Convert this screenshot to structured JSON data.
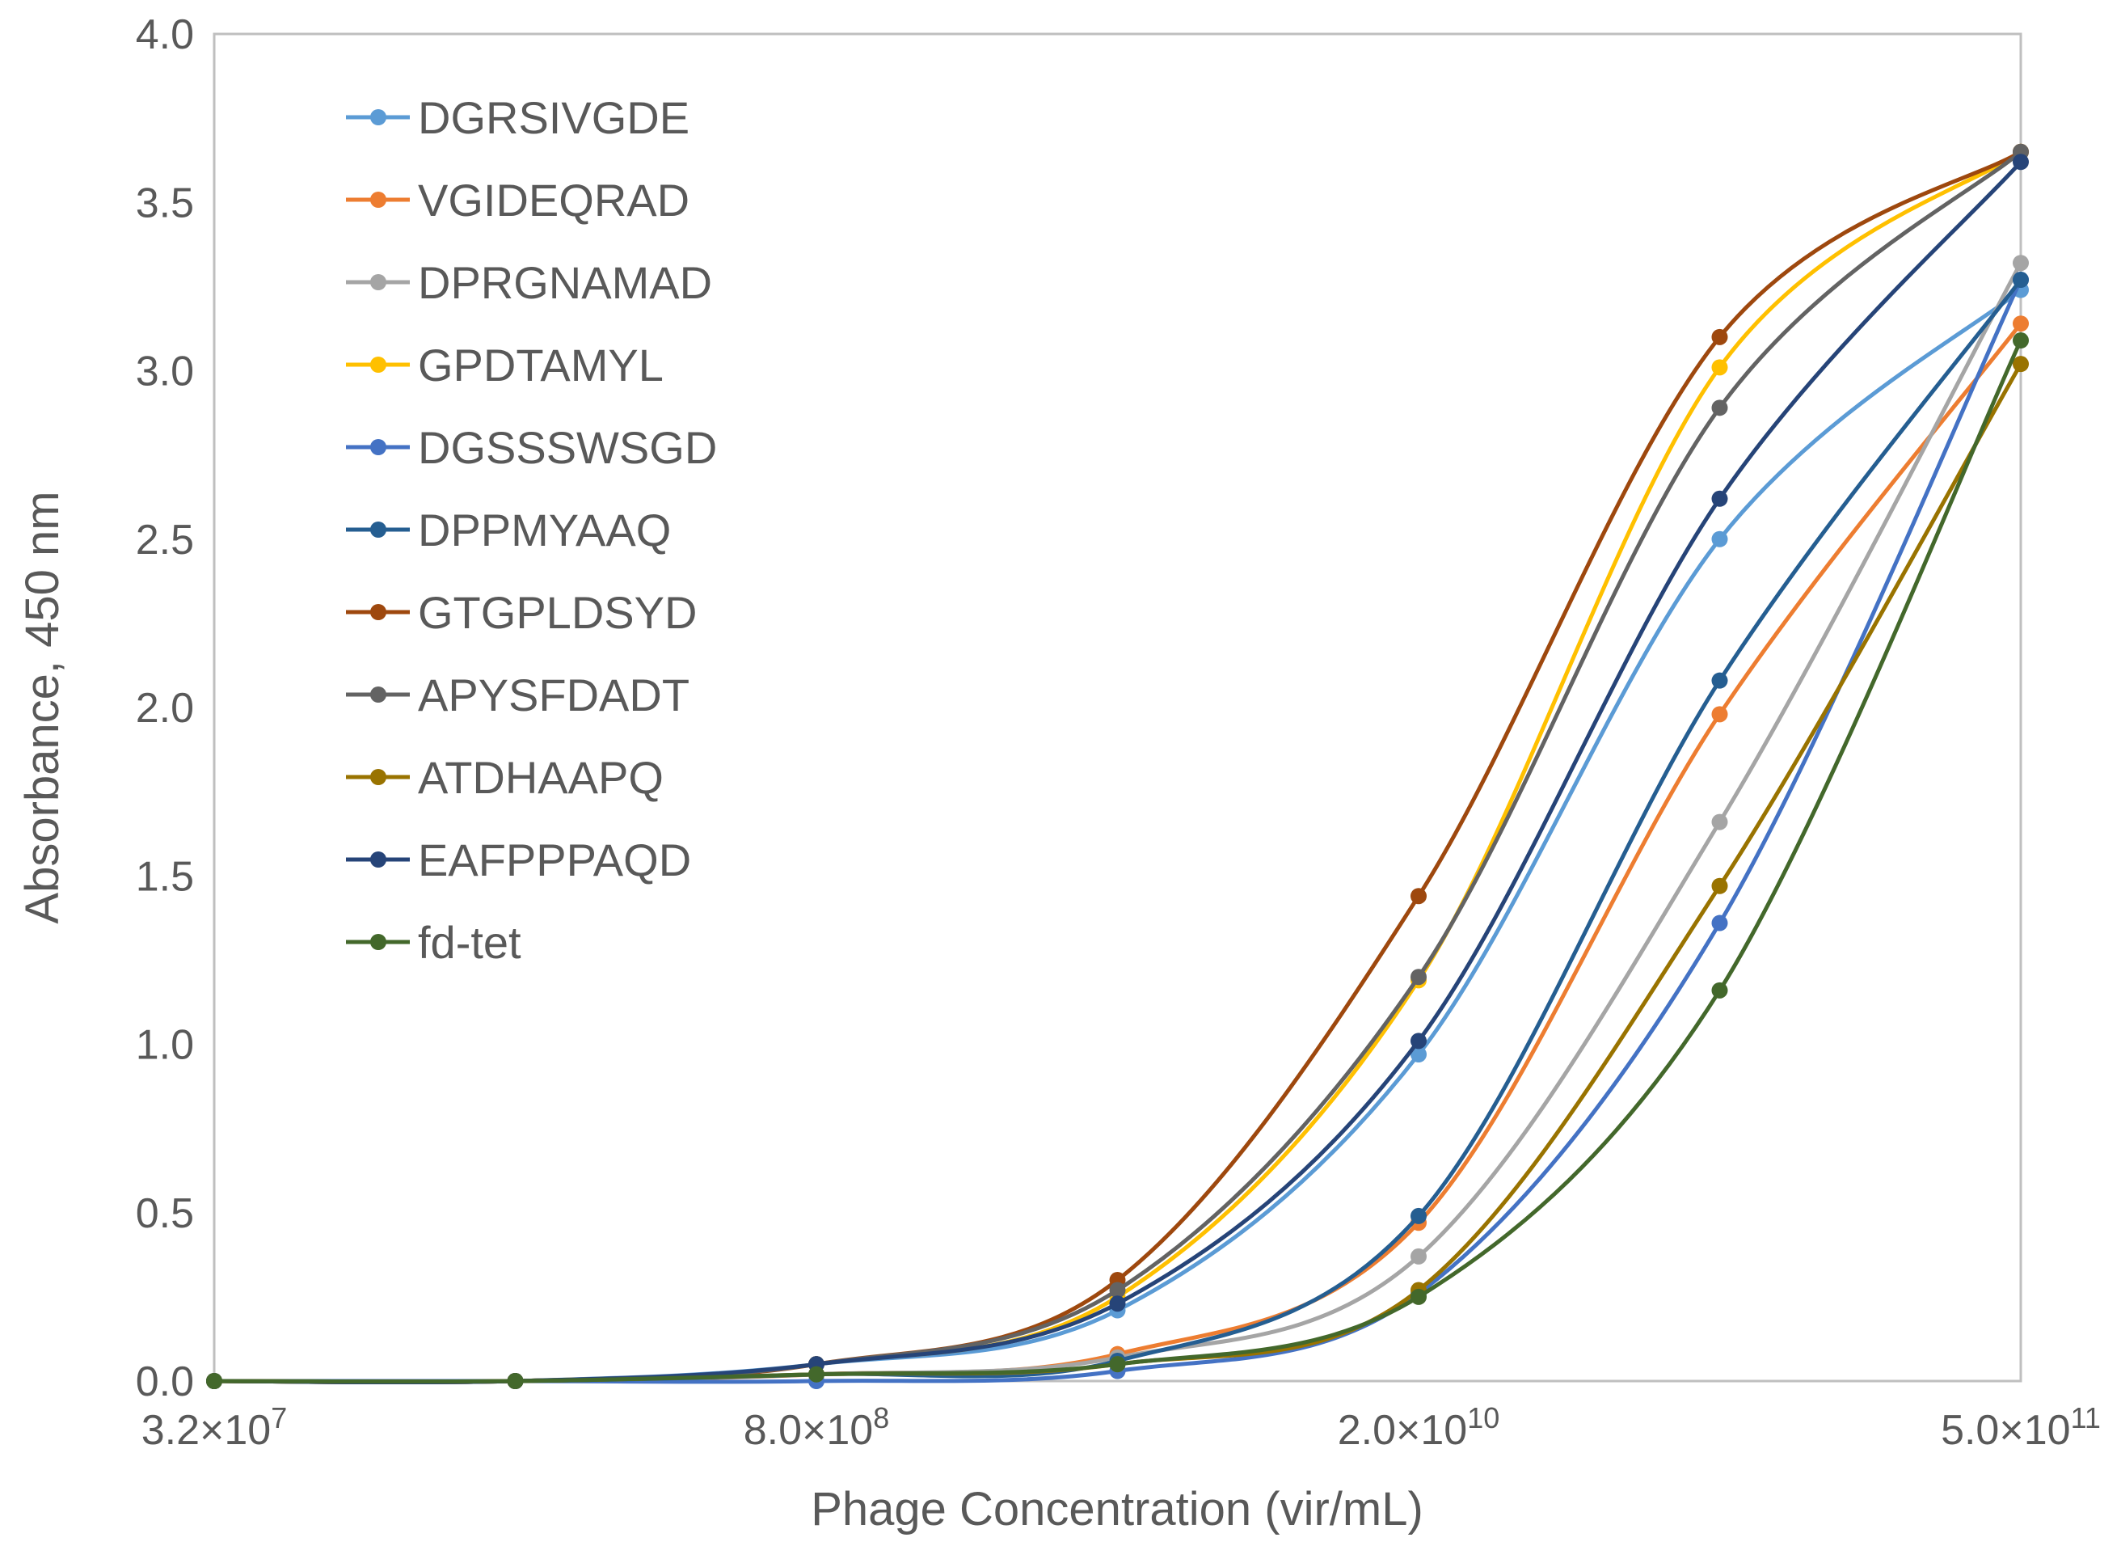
{
  "chart_data": {
    "type": "line",
    "title": "",
    "xlabel": "Phage Concentration (vir/mL)",
    "ylabel": "Absorbance, 450 nm",
    "x_scale": "log",
    "x": [
      32000000.0,
      160000000.0,
      800000000.0,
      4000000000.0,
      20000000000.0,
      100000000000.0,
      500000000000.0
    ],
    "x_tick_labels": [
      {
        "base": "3.2×10",
        "exp": "7"
      },
      {
        "base": "8.0×10",
        "exp": "8"
      },
      {
        "base": "2.0×10",
        "exp": "10"
      },
      {
        "base": "5.0×10",
        "exp": "11"
      }
    ],
    "ylim": [
      0,
      4.0
    ],
    "y_tick_labels": [
      "0.0",
      "0.5",
      "1.0",
      "1.5",
      "2.0",
      "2.5",
      "3.0",
      "3.5",
      "4.0"
    ],
    "legend_position": "top-left",
    "grid": false,
    "series": [
      {
        "name": "DGRSIVGDE",
        "color": "#5B9BD5",
        "values": [
          0.0,
          0.0,
          0.05,
          0.21,
          0.97,
          2.5,
          3.24
        ]
      },
      {
        "name": "VGIDEQRAD",
        "color": "#ED7D31",
        "values": [
          0.0,
          0.0,
          0.02,
          0.08,
          0.47,
          1.98,
          3.14
        ]
      },
      {
        "name": "DPRGNAMAD",
        "color": "#A5A5A5",
        "values": [
          0.0,
          0.0,
          0.02,
          0.07,
          0.37,
          1.66,
          3.32
        ]
      },
      {
        "name": "GPDTAMYL",
        "color": "#FFC000",
        "values": [
          0.0,
          0.0,
          0.05,
          0.25,
          1.19,
          3.01,
          3.65
        ]
      },
      {
        "name": "DGSSSWSGD",
        "color": "#4472C4",
        "values": [
          0.0,
          0.0,
          0.0,
          0.03,
          0.26,
          1.36,
          3.27
        ]
      },
      {
        "name": "DPPMYAAQ",
        "color": "#255E91",
        "values": [
          0.0,
          0.0,
          0.02,
          0.06,
          0.49,
          2.08,
          3.27
        ]
      },
      {
        "name": "GTGPLDSYD",
        "color": "#9E480E",
        "values": [
          0.0,
          0.0,
          0.05,
          0.3,
          1.44,
          3.1,
          3.65
        ]
      },
      {
        "name": "APYSFDADT",
        "color": "#636363",
        "values": [
          0.0,
          0.0,
          0.05,
          0.27,
          1.2,
          2.89,
          3.65
        ]
      },
      {
        "name": "ATDHAAPQ",
        "color": "#997300",
        "values": [
          0.0,
          0.0,
          0.02,
          0.05,
          0.27,
          1.47,
          3.02
        ]
      },
      {
        "name": "EAFPPPAQD",
        "color": "#264478",
        "values": [
          0.0,
          0.0,
          0.05,
          0.23,
          1.01,
          2.62,
          3.62
        ]
      },
      {
        "name": "fd-tet",
        "color": "#43682B",
        "values": [
          0.0,
          0.0,
          0.02,
          0.05,
          0.25,
          1.16,
          3.09
        ]
      }
    ]
  }
}
